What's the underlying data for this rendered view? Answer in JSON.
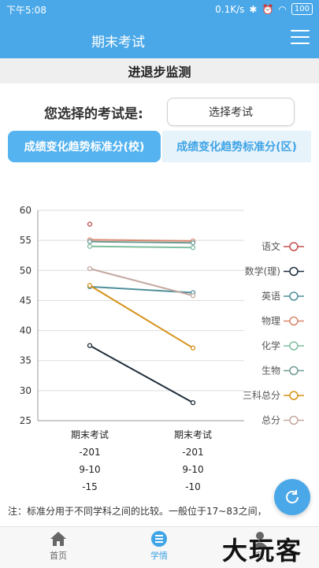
{
  "status": {
    "time": "下午5:08",
    "speed": "0.1K/s",
    "battery": "100"
  },
  "appbar": {
    "title": "期末考试"
  },
  "section": {
    "title": "进退步监测"
  },
  "exam_select": {
    "label": "您选择的考试是:",
    "button": "选择考试"
  },
  "tabs": [
    {
      "label": "成绩变化趋势标准分(校)"
    },
    {
      "label": "成绩变化趋势标准分(区)"
    }
  ],
  "chart_data": {
    "type": "line",
    "ylim": [
      25,
      60
    ],
    "yticks": [
      "60",
      "55",
      "50",
      "45",
      "40",
      "35",
      "30",
      "25"
    ],
    "x": [
      {
        "name": "期末考试",
        "code": "-201",
        "term": "9-10",
        "n": "-15"
      },
      {
        "name": "期末考试",
        "code": "-201",
        "term": "9-10",
        "n": "-10"
      }
    ],
    "series": [
      {
        "name": "语文",
        "color": "#c0504d",
        "values": [
          57.7,
          null
        ]
      },
      {
        "name": "数学(理)",
        "color": "#1f2d3a",
        "values": [
          37.5,
          28.0
        ]
      },
      {
        "name": "英语",
        "color": "#4f8f9a",
        "values": [
          47.3,
          46.3
        ]
      },
      {
        "name": "物理",
        "color": "#d98870",
        "values": [
          55.1,
          54.9
        ]
      },
      {
        "name": "化学",
        "color": "#7fbf9f",
        "values": [
          54.0,
          53.8
        ]
      },
      {
        "name": "生物",
        "color": "#6f9a94",
        "values": [
          54.8,
          54.6
        ]
      },
      {
        "name": "三科总分",
        "color": "#d69118",
        "values": [
          47.5,
          37.1
        ]
      },
      {
        "name": "总分",
        "color": "#c4a8a0",
        "values": [
          50.3,
          45.8
        ]
      }
    ]
  },
  "note": "注：标准分用于不同学科之间的比较。一般位于17~83之间，",
  "nav": [
    {
      "label": "首页",
      "icon": "home-icon"
    },
    {
      "label": "学情",
      "icon": "list-icon"
    },
    {
      "label": "我",
      "icon": "person-icon"
    }
  ],
  "watermark": "大玩客"
}
